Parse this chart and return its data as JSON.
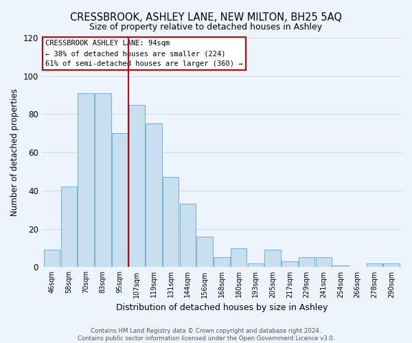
{
  "title": "CRESSBROOK, ASHLEY LANE, NEW MILTON, BH25 5AQ",
  "subtitle": "Size of property relative to detached houses in Ashley",
  "xlabel": "Distribution of detached houses by size in Ashley",
  "ylabel": "Number of detached properties",
  "bar_color": "#c8dff0",
  "bar_edge_color": "#7ab4d4",
  "bin_labels": [
    "46sqm",
    "58sqm",
    "70sqm",
    "83sqm",
    "95sqm",
    "107sqm",
    "119sqm",
    "131sqm",
    "144sqm",
    "156sqm",
    "168sqm",
    "180sqm",
    "193sqm",
    "205sqm",
    "217sqm",
    "229sqm",
    "241sqm",
    "254sqm",
    "266sqm",
    "278sqm",
    "290sqm"
  ],
  "bar_heights": [
    9,
    42,
    91,
    91,
    70,
    85,
    75,
    47,
    33,
    16,
    5,
    10,
    2,
    9,
    3,
    5,
    5,
    1,
    0,
    2,
    2
  ],
  "ylim": [
    0,
    120
  ],
  "yticks": [
    0,
    20,
    40,
    60,
    80,
    100,
    120
  ],
  "vline_color": "#cc0000",
  "vline_index": 4.5,
  "annotation_title": "CRESSBROOK ASHLEY LANE: 94sqm",
  "annotation_line1": "← 38% of detached houses are smaller (224)",
  "annotation_line2": "61% of semi-detached houses are larger (360) →",
  "footer1": "Contains HM Land Registry data © Crown copyright and database right 2024.",
  "footer2": "Contains public sector information licensed under the Open Government Licence v3.0.",
  "grid_color": "#c8dff0",
  "background_color": "#eef4fb"
}
